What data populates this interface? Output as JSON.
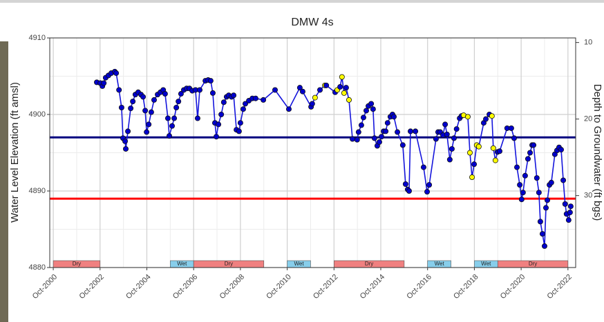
{
  "chart_data": {
    "type": "line",
    "title": "DMW 4s",
    "y_label": "Water Level Elevation (ft amsl)",
    "y2_label": "Depth to Groundwater (ft bgs)",
    "xlim": [
      2000.6,
      2023.08
    ],
    "xticks": [
      {
        "value": 2000.75,
        "label": "Oct-2000"
      },
      {
        "value": 2002.75,
        "label": "Oct-2002"
      },
      {
        "value": 2004.75,
        "label": "Oct-2004"
      },
      {
        "value": 2006.75,
        "label": "Oct-2006"
      },
      {
        "value": 2008.75,
        "label": "Oct-2008"
      },
      {
        "value": 2010.75,
        "label": "Oct-2010"
      },
      {
        "value": 2012.75,
        "label": "Oct-2012"
      },
      {
        "value": 2014.75,
        "label": "Oct-2014"
      },
      {
        "value": 2016.75,
        "label": "Oct-2016"
      },
      {
        "value": 2018.75,
        "label": "Oct-2018"
      },
      {
        "value": 2020.75,
        "label": "Oct-2020"
      },
      {
        "value": 2022.75,
        "label": "Oct-2022"
      }
    ],
    "ylim": [
      4880,
      4910
    ],
    "yticks": [
      4880,
      4890,
      4900,
      4910
    ],
    "y2lim": [
      39.4,
      9.4
    ],
    "y2ticks": [
      10,
      20,
      30
    ],
    "grid": true,
    "minor_grid": true,
    "reference_lines": [
      {
        "value": 4897,
        "color": "#00007f"
      },
      {
        "value": 4889,
        "color": "#ff0000"
      }
    ],
    "bands": [
      {
        "start": 2000.75,
        "end": 2002.75,
        "label": "Dry",
        "color": "#f08080"
      },
      {
        "start": 2005.75,
        "end": 2006.75,
        "label": "Wet",
        "color": "#87ceeb"
      },
      {
        "start": 2006.75,
        "end": 2009.75,
        "label": "Dry",
        "color": "#f08080"
      },
      {
        "start": 2010.75,
        "end": 2011.75,
        "label": "Wet",
        "color": "#87ceeb"
      },
      {
        "start": 2012.75,
        "end": 2015.75,
        "label": "Dry",
        "color": "#f08080"
      },
      {
        "start": 2016.75,
        "end": 2017.75,
        "label": "Wet",
        "color": "#87ceeb"
      },
      {
        "start": 2018.75,
        "end": 2019.75,
        "label": "Wet",
        "color": "#87ceeb"
      },
      {
        "start": 2019.75,
        "end": 2022.75,
        "label": "Dry",
        "color": "#f08080"
      }
    ],
    "x": [
      2002.61,
      2002.76,
      2002.85,
      2002.91,
      2002.99,
      2003.11,
      2003.23,
      2003.38,
      2003.44,
      2003.56,
      2003.67,
      2003.73,
      2003.82,
      2003.85,
      2003.94,
      2004.06,
      2004.15,
      2004.26,
      2004.38,
      2004.5,
      2004.59,
      2004.68,
      2004.74,
      2004.83,
      2004.94,
      2005.06,
      2005.21,
      2005.33,
      2005.45,
      2005.53,
      2005.65,
      2005.71,
      2005.83,
      2005.92,
      2006.01,
      2006.1,
      2006.21,
      2006.33,
      2006.45,
      2006.57,
      2006.69,
      2006.83,
      2006.92,
      2007.01,
      2007.25,
      2007.37,
      2007.48,
      2007.57,
      2007.66,
      2007.72,
      2007.81,
      2007.93,
      2008.04,
      2008.16,
      2008.25,
      2008.37,
      2008.46,
      2008.58,
      2008.69,
      2008.75,
      2008.87,
      2008.96,
      2009.11,
      2009.26,
      2009.4,
      2009.73,
      2010.23,
      2010.82,
      2011.29,
      2011.41,
      2011.77,
      2011.82,
      2011.94,
      2012.15,
      2012.36,
      2012.42,
      2012.8,
      2012.89,
      2013.01,
      2013.09,
      2013.18,
      2013.27,
      2013.39,
      2013.54,
      2013.74,
      2013.8,
      2013.92,
      2014.01,
      2014.13,
      2014.22,
      2014.34,
      2014.42,
      2014.48,
      2014.6,
      2014.69,
      2014.78,
      2014.87,
      2014.96,
      2015.04,
      2015.16,
      2015.25,
      2015.31,
      2015.46,
      2015.69,
      2015.81,
      2015.9,
      2015.96,
      2016.02,
      2016.23,
      2016.58,
      2016.73,
      2016.82,
      2017.11,
      2017.2,
      2017.29,
      2017.41,
      2017.5,
      2017.58,
      2017.7,
      2017.79,
      2017.88,
      2017.99,
      2018.12,
      2018.2,
      2018.29,
      2018.47,
      2018.56,
      2018.65,
      2018.74,
      2018.85,
      2018.94,
      2019.15,
      2019.24,
      2019.39,
      2019.5,
      2019.56,
      2019.65,
      2019.74,
      2019.83,
      2020.15,
      2020.33,
      2020.45,
      2020.57,
      2020.69,
      2020.77,
      2020.83,
      2020.92,
      2021.04,
      2021.13,
      2021.22,
      2021.28,
      2021.42,
      2021.51,
      2021.57,
      2021.66,
      2021.75,
      2021.81,
      2021.87,
      2021.96,
      2022.04,
      2022.19,
      2022.28,
      2022.37,
      2022.46,
      2022.55,
      2022.63,
      2022.69,
      2022.78,
      2022.84,
      2022.87
    ],
    "series": [
      {
        "color": "#1414dc",
        "values": [
          4904.2,
          4904.1,
          4903.7,
          4904.1,
          4904.8,
          4905.1,
          4905.4,
          4905.6,
          4905.4,
          4903.2,
          4900.9,
          4896.9,
          4896.5,
          4895.5,
          4897.8,
          4900.8,
          4901.7,
          4902.6,
          4902.9,
          4902.6,
          4902.3,
          4900.5,
          4897.7,
          4898.7,
          4900.3,
          4901.9,
          4902.6,
          4902.9,
          4903.2,
          4902.7,
          4899.5,
          4897.2,
          4898.5,
          4899.5,
          4900.9,
          4901.7,
          4902.7,
          4903.2,
          4903.4,
          4903.4,
          4903.1,
          4903.2,
          4899.5,
          4903.2,
          4904.4,
          4904.5,
          4904.4,
          4902.8,
          4898.9,
          4897.1,
          4898.7,
          4900.0,
          4901.6,
          4902.3,
          4902.5,
          4902.3,
          4902.5,
          4898.0,
          4897.8,
          4898.9,
          4900.7,
          4901.4,
          4901.8,
          4902.1,
          4902.1,
          4901.9,
          4903.2,
          4900.7,
          4903.5,
          4903.0,
          4901.0,
          4901.4,
          4902.2,
          4903.2,
          4903.8,
          4903.8,
          4902.9,
          4903.2,
          4903.6,
          4904.9,
          4902.8,
          4903.5,
          4901.9,
          4896.8,
          4896.7,
          4897.7,
          4898.6,
          4899.6,
          4900.5,
          4901.1,
          4901.4,
          4900.7,
          4896.9,
          4895.9,
          4896.4,
          4897.1,
          4897.8,
          4897.8,
          4898.9,
          4899.7,
          4900.0,
          4899.7,
          4897.7,
          4896.0,
          4890.9,
          4890.2,
          4890.0,
          4897.8,
          4897.8,
          4893.1,
          4889.9,
          4890.8,
          4896.8,
          4897.7,
          4897.7,
          4897.3,
          4898.7,
          4897.4,
          4894.1,
          4895.5,
          4896.9,
          4898.1,
          4899.5,
          4899.8,
          4899.9,
          4899.7,
          4895.0,
          4891.8,
          4893.5,
          4896.0,
          4895.8,
          4898.9,
          4899.4,
          4900.0,
          4899.8,
          4895.6,
          4894.0,
          4895.1,
          4895.2,
          4898.2,
          4898.2,
          4896.9,
          4893.1,
          4890.8,
          4888.9,
          4889.8,
          4892.0,
          4894.2,
          4895.0,
          4896.0,
          4896.0,
          4891.7,
          4889.8,
          4886.0,
          4884.4,
          4882.8,
          4887.8,
          4888.8,
          4890.8,
          4891.1,
          4894.8,
          4895.3,
          4895.7,
          4895.4,
          4891.4,
          4888.3,
          4887.0,
          4886.2,
          4887.2,
          4888.0
        ],
        "marker_colors": [
          "#00c",
          "#00c",
          "#00c",
          "#00c",
          "#00c",
          "#00c",
          "#00c",
          "#00c",
          "#00c",
          "#00c",
          "#00c",
          "#00c",
          "#00c",
          "#00c",
          "#00c",
          "#00c",
          "#00c",
          "#00c",
          "#00c",
          "#00c",
          "#00c",
          "#00c",
          "#00c",
          "#00c",
          "#00c",
          "#00c",
          "#00c",
          "#00c",
          "#00c",
          "#00c",
          "#00c",
          "#00c",
          "#00c",
          "#00c",
          "#00c",
          "#00c",
          "#00c",
          "#00c",
          "#00c",
          "#00c",
          "#00c",
          "#00c",
          "#00c",
          "#00c",
          "#00c",
          "#00c",
          "#00c",
          "#00c",
          "#00c",
          "#00c",
          "#00c",
          "#00c",
          "#00c",
          "#00c",
          "#00c",
          "#00c",
          "#00c",
          "#00c",
          "#00c",
          "#00c",
          "#00c",
          "#00c",
          "#00c",
          "#00c",
          "#00c",
          "#00c",
          "#00c",
          "#00c",
          "#00c",
          "#00c",
          "#00c",
          "#00c",
          "#ff0",
          "#00c",
          "#ff0",
          "#00c",
          "#00c",
          "#ff0",
          "#00c",
          "#ff0",
          "#ff0",
          "#00c",
          "#ff0",
          "#00c",
          "#00c",
          "#00c",
          "#00c",
          "#00c",
          "#00c",
          "#00c",
          "#00c",
          "#00c",
          "#00c",
          "#00c",
          "#00c",
          "#00c",
          "#00c",
          "#00c",
          "#00c",
          "#00c",
          "#00c",
          "#00c",
          "#00c",
          "#00c",
          "#00c",
          "#00c",
          "#00c",
          "#00c",
          "#00c",
          "#00c",
          "#00c",
          "#00c",
          "#00c",
          "#00c",
          "#00c",
          "#00c",
          "#00c",
          "#00c",
          "#00c",
          "#00c",
          "#00c",
          "#00c",
          "#00c",
          "#00c",
          "#ff0",
          "#ff0",
          "#ff0",
          "#ff0",
          "#00c",
          "#ff0",
          "#ff0",
          "#00c",
          "#00c",
          "#00c",
          "#ff0",
          "#ff0",
          "#ff0",
          "#00c",
          "#00c",
          "#00c",
          "#00c",
          "#00c",
          "#00c",
          "#00c",
          "#00c",
          "#00c",
          "#00c",
          "#00c",
          "#00c",
          "#00c",
          "#00c",
          "#00c",
          "#00c",
          "#00c",
          "#00c",
          "#00c",
          "#00c",
          "#00c",
          "#00c",
          "#00c",
          "#00c",
          "#00c",
          "#00c",
          "#00c",
          "#00c",
          "#00c",
          "#00c",
          "#00c",
          "#00c",
          "#00c",
          "#00c"
        ]
      }
    ]
  }
}
